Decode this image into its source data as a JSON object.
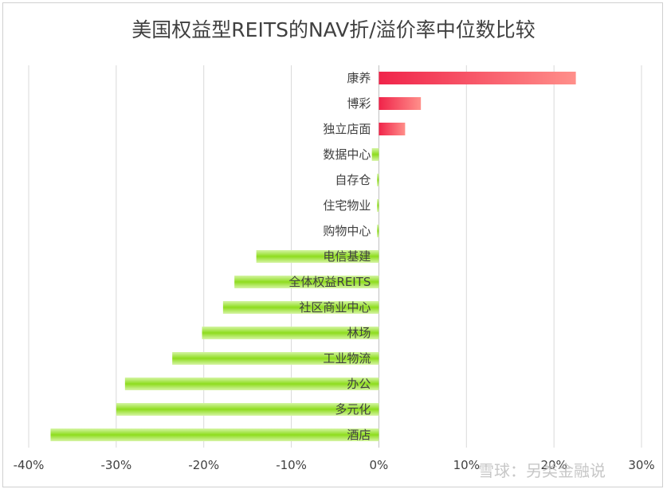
{
  "chart_data": {
    "type": "bar",
    "orientation": "horizontal",
    "title": "美国权益型REITS的NAV折/溢价率中位数比较",
    "xlabel": "",
    "ylabel": "",
    "xlim": [
      -40,
      30
    ],
    "ticks": [
      -40,
      -30,
      -20,
      -10,
      0,
      10,
      20,
      30
    ],
    "tick_labels": [
      "-40%",
      "-30%",
      "-20%",
      "-10%",
      "0%",
      "10%",
      "20%",
      "30%"
    ],
    "grid": true,
    "legend": "none",
    "categories": [
      "康养",
      "博彩",
      "独立店面",
      "数据中心",
      "自存仓",
      "住宅物业",
      "购物中心",
      "电信基建",
      "全体权益REITS",
      "社区商业中心",
      "林场",
      "工业物流",
      "办公",
      "多元化",
      "酒店"
    ],
    "values": [
      22.5,
      4.8,
      3.0,
      -0.8,
      -0.2,
      -0.2,
      -0.2,
      -14.0,
      -16.5,
      -17.8,
      -20.2,
      -23.6,
      -29.0,
      -30.0,
      -37.5
    ],
    "colors": {
      "positive": [
        "#f0244a",
        "#ff8f8a"
      ],
      "negative": [
        "#8edc1e",
        "#d6f5a6"
      ]
    }
  },
  "watermark": "雪球：另类金融说"
}
